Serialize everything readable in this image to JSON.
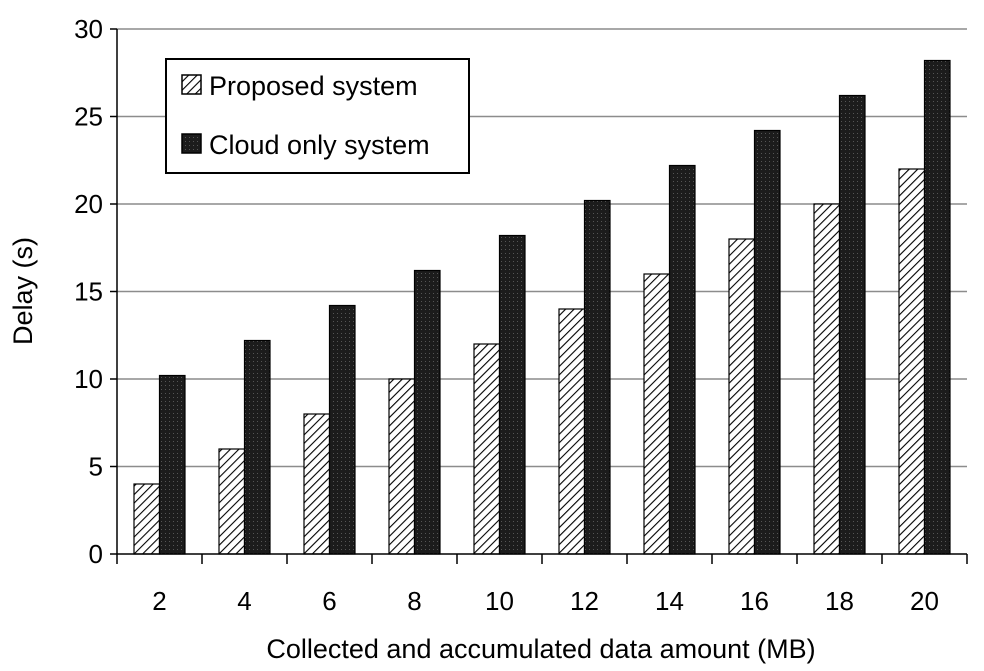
{
  "chart_data": {
    "type": "bar",
    "categories": [
      "2",
      "4",
      "6",
      "8",
      "10",
      "12",
      "14",
      "16",
      "18",
      "20"
    ],
    "series": [
      {
        "name": "Proposed system",
        "values": [
          4,
          6,
          8,
          10,
          12,
          14,
          16,
          18,
          20,
          22
        ],
        "fill": "hatch"
      },
      {
        "name": "Cloud only system",
        "values": [
          10.2,
          12.2,
          14.2,
          16.2,
          18.2,
          20.2,
          22.2,
          24.2,
          26.2,
          28.2
        ],
        "fill": "dark-dotted"
      }
    ],
    "title": "",
    "xlabel": "Collected and accumulated data amount (MB)",
    "ylabel": "Delay (s)",
    "ylim": [
      0,
      30
    ],
    "yticks": [
      0,
      5,
      10,
      15,
      20,
      25,
      30
    ],
    "grid": "horizontal",
    "legend_position": "top-left"
  },
  "colors": {
    "axis": "#000000",
    "grid": "#8c8c8c",
    "dark_bar": "#1c1c1c",
    "hatch_line": "#000000"
  }
}
